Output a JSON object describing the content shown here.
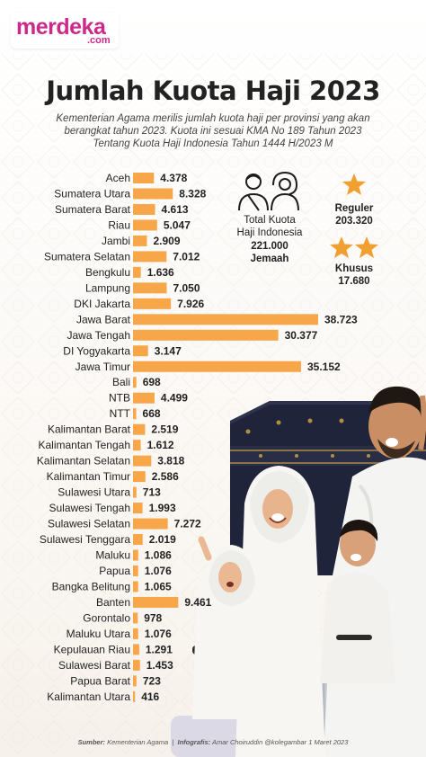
{
  "brand": {
    "name": "merdeka",
    "domain": ".com"
  },
  "title": "Jumlah Kuota Haji 2023",
  "subtitle": [
    "Kementerian Agama merilis jumlah kuota haji per provinsi yang akan",
    "berangkat tahun 2023. Kuota ini sesuai KMA No 189 Tahun 2023",
    "Tentang Kuota Haji Indonesia Tahun 1444 H/2023 M"
  ],
  "total": {
    "label_line1": "Total Kuota",
    "label_line2": "Haji Indonesia",
    "value": "221.000",
    "unit": "Jemaah"
  },
  "reguler": {
    "label": "Reguler",
    "value": "203.320"
  },
  "khusus": {
    "label": "Khusus",
    "value": "17.680"
  },
  "source": {
    "source_label": "Sumber:",
    "source_text": " Kementerian Agama",
    "infografis_label": "Infografis:",
    "infografis_text": " Amar Choiruddin @kolegambar 1 Maret 2023"
  },
  "colors": {
    "bar": "#f7a64a",
    "brand": "#cc2a8a",
    "star": "#f0a030"
  },
  "chart_data": {
    "type": "bar",
    "orientation": "horizontal",
    "categories": [
      "Aceh",
      "Sumatera Utara",
      "Sumatera Barat",
      "Riau",
      "Jambi",
      "Sumatera Selatan",
      "Bengkulu",
      "Lampung",
      "DKI Jakarta",
      "Jawa Barat",
      "Jawa Tengah",
      "DI Yogyakarta",
      "Jawa Timur",
      "Bali",
      "NTB",
      "NTT",
      "Kalimantan Barat",
      "Kalimantan Tengah",
      "Kalimantan Selatan",
      "Kalimantan Timur",
      "Sulawesi Utara",
      "Sulawesi Tengah",
      "Sulawesi Selatan",
      "Sulawesi Tenggara",
      "Maluku",
      "Papua",
      "Bangka Belitung",
      "Banten",
      "Gorontalo",
      "Maluku Utara",
      "Kepulauan Riau",
      "Sulawesi Barat",
      "Papua Barat",
      "Kalimantan Utara"
    ],
    "values": [
      4378,
      8328,
      4613,
      5047,
      2909,
      7012,
      1636,
      7050,
      7926,
      38723,
      30377,
      3147,
      35152,
      698,
      4499,
      668,
      2519,
      1612,
      3818,
      2586,
      713,
      1993,
      7272,
      2019,
      1086,
      1076,
      1065,
      9461,
      978,
      1076,
      1291,
      1453,
      723,
      416
    ],
    "value_labels": [
      "4.378",
      "8.328",
      "4.613",
      "5.047",
      "2.909",
      "7.012",
      "1.636",
      "7.050",
      "7.926",
      "38.723",
      "30.377",
      "3.147",
      "35.152",
      "698",
      "4.499",
      "668",
      "2.519",
      "1.612",
      "3.818",
      "2.586",
      "713",
      "1.993",
      "7.272",
      "2.019",
      "1.086",
      "1.076",
      "1.065",
      "9.461",
      "978",
      "1.076",
      "1.291",
      "1.453",
      "723",
      "416"
    ],
    "title": "Jumlah Kuota Haji 2023",
    "xlabel": "",
    "ylabel": "",
    "xlim": [
      0,
      38723
    ],
    "grid": false,
    "legend": "none"
  }
}
